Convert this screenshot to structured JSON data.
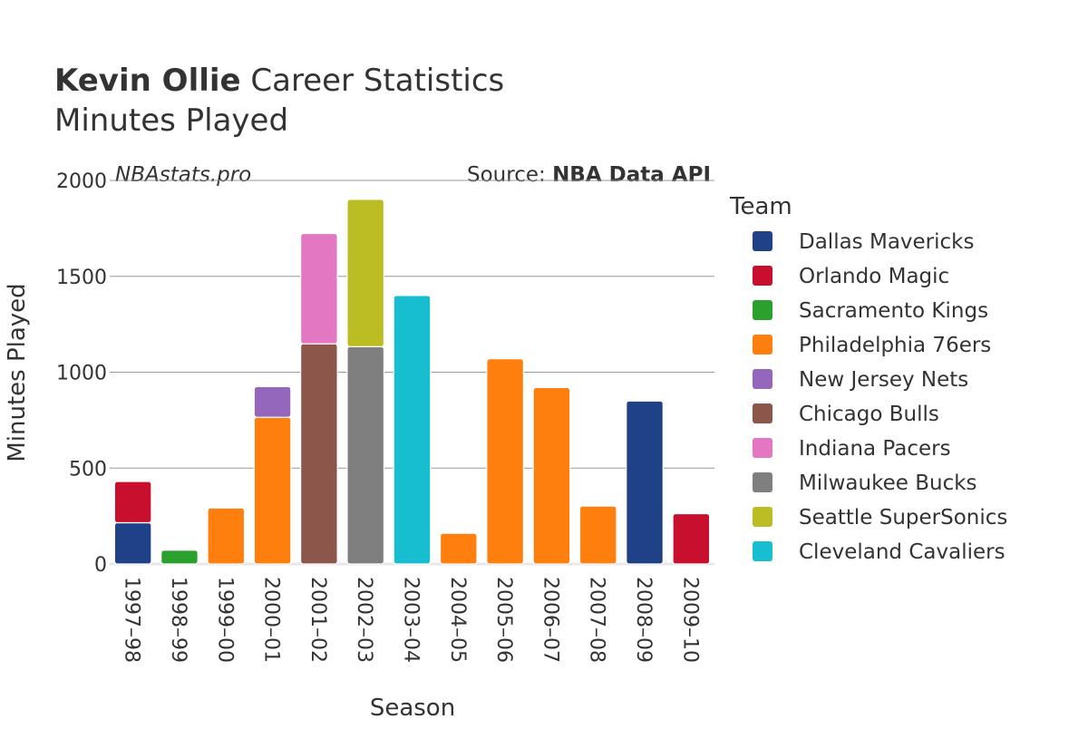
{
  "header": {
    "title_bold": "Kevin Ollie",
    "title_rest": " Career Statistics",
    "subtitle": "Minutes Played",
    "watermark": "NBAstats.pro",
    "source_prefix": "Source: ",
    "source_bold": "NBA Data API"
  },
  "chart_data": {
    "type": "bar",
    "stacked": true,
    "title": "Kevin Ollie Career Statistics",
    "subtitle": "Minutes Played",
    "xlabel": "Season",
    "ylabel": "Minutes Played",
    "ylim": [
      0,
      2000
    ],
    "yticks": [
      0,
      500,
      1000,
      1500,
      2000
    ],
    "grid": true,
    "legend_title": "Team",
    "legend_position": "right",
    "categories": [
      "1997–98",
      "1998–99",
      "1999–00",
      "2000–01",
      "2001–02",
      "2002–03",
      "2003–04",
      "2004–05",
      "2005–06",
      "2006–07",
      "2007–08",
      "2008–09",
      "2009–10"
    ],
    "series": [
      {
        "name": "Dallas Mavericks",
        "color": "#1f4188",
        "values": [
          215,
          null,
          null,
          null,
          null,
          null,
          null,
          null,
          null,
          null,
          null,
          850,
          null
        ]
      },
      {
        "name": "Orlando Magic",
        "color": "#c8102e",
        "values": [
          215,
          null,
          null,
          null,
          null,
          null,
          null,
          null,
          null,
          null,
          null,
          null,
          262
        ]
      },
      {
        "name": "Sacramento Kings",
        "color": "#2ca02c",
        "values": [
          null,
          72,
          null,
          null,
          null,
          null,
          null,
          null,
          null,
          null,
          null,
          null,
          null
        ]
      },
      {
        "name": "Philadelphia 76ers",
        "color": "#ff7f0e",
        "values": [
          null,
          null,
          292,
          765,
          null,
          null,
          null,
          160,
          1070,
          920,
          302,
          null,
          null
        ]
      },
      {
        "name": "New Jersey Nets",
        "color": "#9467bd",
        "values": [
          null,
          null,
          null,
          160,
          null,
          null,
          null,
          null,
          null,
          null,
          null,
          null,
          null
        ]
      },
      {
        "name": "Chicago Bulls",
        "color": "#8c564b",
        "values": [
          null,
          null,
          null,
          null,
          1148,
          null,
          null,
          null,
          null,
          null,
          null,
          null,
          null
        ]
      },
      {
        "name": "Indiana Pacers",
        "color": "#e377c2",
        "values": [
          null,
          null,
          null,
          null,
          575,
          null,
          null,
          null,
          null,
          null,
          null,
          null,
          null
        ]
      },
      {
        "name": "Milwaukee Bucks",
        "color": "#7f7f7f",
        "values": [
          null,
          null,
          null,
          null,
          null,
          1133,
          null,
          null,
          null,
          null,
          null,
          null,
          null
        ]
      },
      {
        "name": "Seattle SuperSonics",
        "color": "#bcbd22",
        "values": [
          null,
          null,
          null,
          null,
          null,
          768,
          null,
          null,
          null,
          null,
          null,
          null,
          null
        ]
      },
      {
        "name": "Cleveland Cavaliers",
        "color": "#17becf",
        "values": [
          null,
          null,
          null,
          null,
          null,
          null,
          1400,
          null,
          null,
          null,
          null,
          null,
          null
        ]
      }
    ]
  }
}
